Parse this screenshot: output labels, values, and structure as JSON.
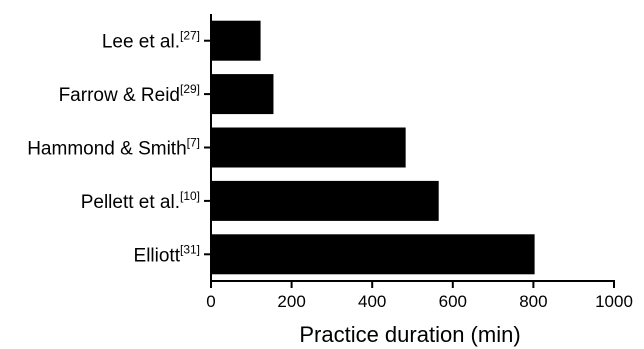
{
  "chart_data": {
    "type": "bar",
    "orientation": "horizontal",
    "categories": [
      {
        "name": "Lee et al.",
        "ref": "[27]"
      },
      {
        "name": "Farrow & Reid",
        "ref": "[29]"
      },
      {
        "name": "Hammond & Smith",
        "ref": "[7]"
      },
      {
        "name": "Pellett et al.",
        "ref": "[10]"
      },
      {
        "name": "Elliott",
        "ref": "[31]"
      }
    ],
    "values": [
      123,
      155,
      483,
      565,
      803
    ],
    "xlabel": "Practice duration (min)",
    "xlim": [
      0,
      1000
    ],
    "xticks": [
      0,
      200,
      400,
      600,
      800,
      1000
    ],
    "grid": false,
    "bar_color": "#000000"
  }
}
